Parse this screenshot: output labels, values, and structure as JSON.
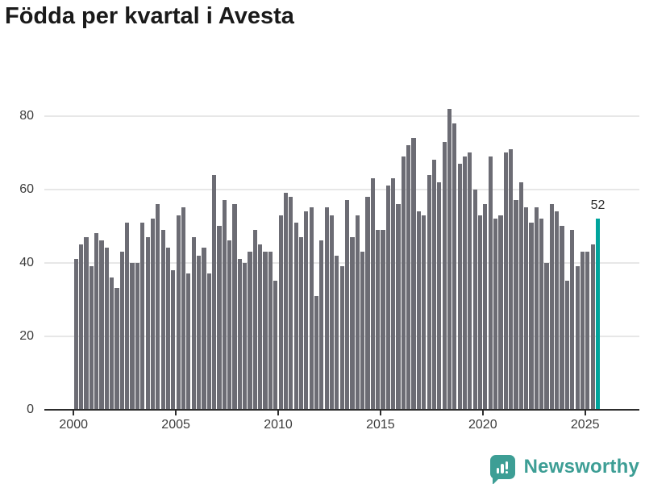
{
  "title": "Födda per kvartal i Avesta",
  "chart_data": {
    "type": "bar",
    "title": "Födda per kvartal i Avesta",
    "frequency": "quarterly",
    "start_period": "2000Q1",
    "end_period": "2025Q3",
    "periods": [
      "2000Q1",
      "2000Q2",
      "2000Q3",
      "2000Q4",
      "2001Q1",
      "2001Q2",
      "2001Q3",
      "2001Q4",
      "2002Q1",
      "2002Q2",
      "2002Q3",
      "2002Q4",
      "2003Q1",
      "2003Q2",
      "2003Q3",
      "2003Q4",
      "2004Q1",
      "2004Q2",
      "2004Q3",
      "2004Q4",
      "2005Q1",
      "2005Q2",
      "2005Q3",
      "2005Q4",
      "2006Q1",
      "2006Q2",
      "2006Q3",
      "2006Q4",
      "2007Q1",
      "2007Q2",
      "2007Q3",
      "2007Q4",
      "2008Q1",
      "2008Q2",
      "2008Q3",
      "2008Q4",
      "2009Q1",
      "2009Q2",
      "2009Q3",
      "2009Q4",
      "2010Q1",
      "2010Q2",
      "2010Q3",
      "2010Q4",
      "2011Q1",
      "2011Q2",
      "2011Q3",
      "2011Q4",
      "2012Q1",
      "2012Q2",
      "2012Q3",
      "2012Q4",
      "2013Q1",
      "2013Q2",
      "2013Q3",
      "2013Q4",
      "2014Q1",
      "2014Q2",
      "2014Q3",
      "2014Q4",
      "2015Q1",
      "2015Q2",
      "2015Q3",
      "2015Q4",
      "2016Q1",
      "2016Q2",
      "2016Q3",
      "2016Q4",
      "2017Q1",
      "2017Q2",
      "2017Q3",
      "2017Q4",
      "2018Q1",
      "2018Q2",
      "2018Q3",
      "2018Q4",
      "2019Q1",
      "2019Q2",
      "2019Q3",
      "2019Q4",
      "2020Q1",
      "2020Q2",
      "2020Q3",
      "2020Q4",
      "2021Q1",
      "2021Q2",
      "2021Q3",
      "2021Q4",
      "2022Q1",
      "2022Q2",
      "2022Q3",
      "2022Q4",
      "2023Q1",
      "2023Q2",
      "2023Q3",
      "2023Q4",
      "2024Q1",
      "2024Q2",
      "2024Q3",
      "2024Q4",
      "2025Q1",
      "2025Q2",
      "2025Q3"
    ],
    "values": [
      41,
      45,
      47,
      39,
      48,
      46,
      44,
      36,
      33,
      43,
      51,
      40,
      40,
      51,
      47,
      52,
      56,
      49,
      44,
      38,
      53,
      55,
      37,
      47,
      42,
      44,
      37,
      64,
      50,
      57,
      46,
      56,
      41,
      40,
      43,
      49,
      45,
      43,
      43,
      35,
      53,
      59,
      58,
      51,
      47,
      54,
      55,
      31,
      46,
      55,
      53,
      42,
      39,
      57,
      47,
      53,
      43,
      58,
      63,
      49,
      49,
      61,
      63,
      56,
      69,
      72,
      74,
      54,
      53,
      64,
      68,
      62,
      73,
      82,
      78,
      67,
      69,
      70,
      60,
      53,
      56,
      69,
      52,
      53,
      70,
      71,
      57,
      62,
      55,
      51,
      55,
      52,
      40,
      56,
      54,
      50,
      35,
      49,
      39,
      43,
      43,
      45,
      52
    ],
    "highlight": {
      "period": "2025Q3",
      "value": 52,
      "label": "52"
    },
    "y_tick_labels": [
      "0",
      "20",
      "40",
      "60",
      "80"
    ],
    "y_ticks": [
      0,
      20,
      40,
      60,
      80
    ],
    "x_tick_labels": [
      "2000",
      "2005",
      "2010",
      "2015",
      "2020",
      "2025"
    ],
    "x_tick_years": [
      2000,
      2005,
      2010,
      2015,
      2020,
      2025
    ],
    "ylim": [
      0,
      88
    ],
    "grid": true,
    "legend": null,
    "xlabel": "",
    "ylabel": "",
    "colors": {
      "bar": "#6c6c74",
      "highlight": "#00a49c"
    }
  },
  "branding": {
    "name": "Newsworthy",
    "color": "#3d9e95",
    "icon": "bar-chart-speech-bubble-icon"
  }
}
